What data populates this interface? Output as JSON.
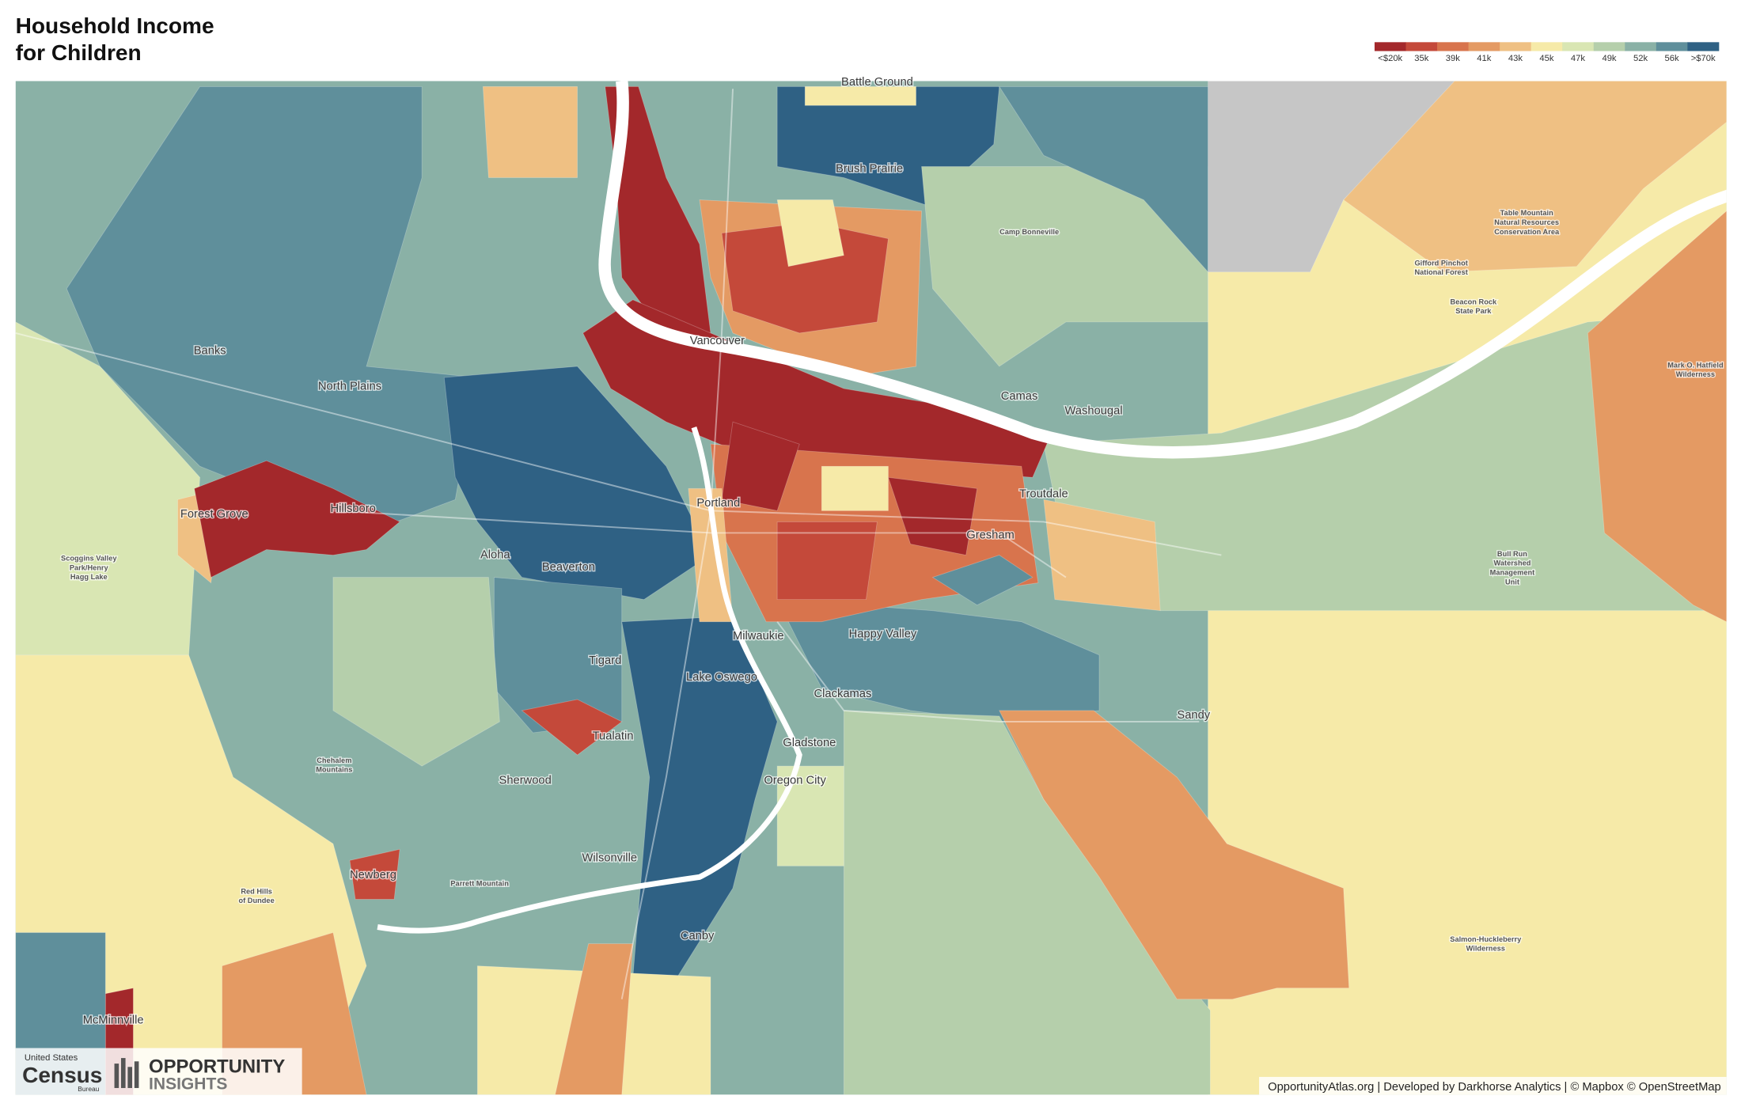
{
  "header": {
    "title": [
      "Household Income",
      "for Children"
    ]
  },
  "legend": {
    "items": [
      {
        "label": "<$20k",
        "color": "#a3282b"
      },
      {
        "label": "35k",
        "color": "#c4493a"
      },
      {
        "label": "39k",
        "color": "#d8744d"
      },
      {
        "label": "41k",
        "color": "#e49a63"
      },
      {
        "label": "43k",
        "color": "#efc083"
      },
      {
        "label": "45k",
        "color": "#f6eaa8"
      },
      {
        "label": "47k",
        "color": "#d9e6b3"
      },
      {
        "label": "49k",
        "color": "#b5cfab"
      },
      {
        "label": "52k",
        "color": "#8ab1a6"
      },
      {
        "label": "56k",
        "color": "#5f8f9b"
      },
      {
        "label": ">$70k",
        "color": "#2f6184"
      }
    ]
  },
  "places": [
    {
      "lines": [
        "Battle Ground"
      ]
    },
    {
      "lines": [
        "Brush Prairie"
      ]
    },
    {
      "lines": [
        "Camp Bonneville"
      ]
    },
    {
      "lines": [
        "Table Mountain",
        "Natural Resources",
        "Conservation Area"
      ]
    },
    {
      "lines": [
        "Gifford Pinchot",
        "National Forest"
      ]
    },
    {
      "lines": [
        "Beacon Rock",
        "State Park"
      ]
    },
    {
      "lines": [
        "Mark O. Hatfield",
        "Wilderness"
      ]
    },
    {
      "lines": [
        "Banks"
      ]
    },
    {
      "lines": [
        "North Plains"
      ]
    },
    {
      "lines": [
        "Vancouver"
      ]
    },
    {
      "lines": [
        "Camas"
      ]
    },
    {
      "lines": [
        "Washougal"
      ]
    },
    {
      "lines": [
        "Troutdale"
      ]
    },
    {
      "lines": [
        "Forest Grove"
      ]
    },
    {
      "lines": [
        "Hillsboro"
      ]
    },
    {
      "lines": [
        "Portland"
      ]
    },
    {
      "lines": [
        "Gresham"
      ]
    },
    {
      "lines": [
        "Aloha"
      ]
    },
    {
      "lines": [
        "Beaverton"
      ]
    },
    {
      "lines": [
        "Scoggins Valley",
        "Park/Henry",
        "Hagg Lake"
      ]
    },
    {
      "lines": [
        "Bull Run",
        "Watershed",
        "Management",
        "Unit"
      ]
    },
    {
      "lines": [
        "Happy Valley"
      ]
    },
    {
      "lines": [
        "Milwaukie"
      ]
    },
    {
      "lines": [
        "Tigard"
      ]
    },
    {
      "lines": [
        "Lake Oswego"
      ]
    },
    {
      "lines": [
        "Clackamas"
      ]
    },
    {
      "lines": [
        "Sandy"
      ]
    },
    {
      "lines": [
        "Tualatin"
      ]
    },
    {
      "lines": [
        "Gladstone"
      ]
    },
    {
      "lines": [
        "Chehalem",
        "Mountains"
      ]
    },
    {
      "lines": [
        "Sherwood"
      ]
    },
    {
      "lines": [
        "Oregon City"
      ]
    },
    {
      "lines": [
        "Wilsonville"
      ]
    },
    {
      "lines": [
        "Red Hills",
        "of Dundee"
      ]
    },
    {
      "lines": [
        "Newberg"
      ]
    },
    {
      "lines": [
        "Parrett Mountain"
      ]
    },
    {
      "lines": [
        "Canby"
      ]
    },
    {
      "lines": [
        "Salmon-Huckleberry",
        "Wilderness"
      ]
    },
    {
      "lines": [
        "McMinnville"
      ]
    }
  ],
  "logos": {
    "census": [
      "United States",
      "Census",
      "Bureau"
    ],
    "opportunity": [
      "OPPORTUNITY",
      "INSIGHTS"
    ]
  },
  "attribution": "OpportunityAtlas.org | Developed by Darkhorse Analytics | © Mapbox © OpenStreetMap"
}
